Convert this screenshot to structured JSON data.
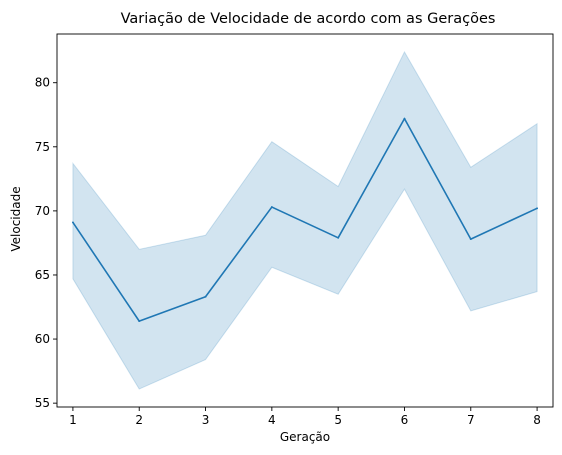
{
  "chart_data": {
    "type": "line",
    "title": "Variação de Velocidade de acordo com as Gerações",
    "xlabel": "Geração",
    "ylabel": "Velocidade",
    "x": [
      1,
      2,
      3,
      4,
      5,
      6,
      7,
      8
    ],
    "x_ticks": [
      "1",
      "2",
      "3",
      "4",
      "5",
      "6",
      "7",
      "8"
    ],
    "y_ticks": [
      "55",
      "60",
      "65",
      "70",
      "75",
      "80"
    ],
    "y_tick_values": [
      55,
      60,
      65,
      70,
      75,
      80
    ],
    "xlim": [
      0.76,
      8.24
    ],
    "ylim": [
      54.7,
      83.8
    ],
    "grid": false,
    "series": [
      {
        "values": [
          69.1,
          61.4,
          63.3,
          70.3,
          67.9,
          77.2,
          67.8,
          70.2
        ],
        "ci_lower": [
          64.7,
          56.1,
          58.4,
          65.6,
          63.5,
          71.7,
          62.2,
          63.7
        ],
        "ci_upper": [
          73.7,
          67.0,
          68.1,
          75.4,
          71.9,
          82.4,
          73.4,
          76.8
        ],
        "color": "#1f77b4",
        "band_color": "#1f77b4"
      }
    ]
  }
}
